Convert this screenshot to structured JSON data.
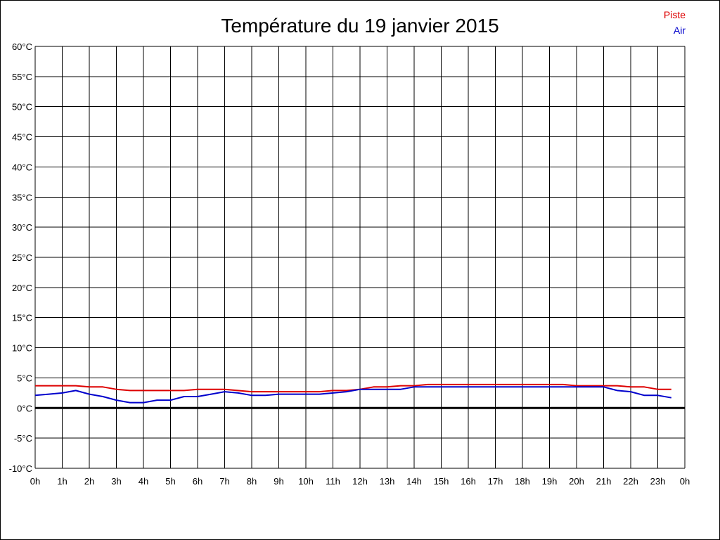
{
  "chart_data": {
    "type": "line",
    "title": "Température du 19 janvier 2015",
    "xlabel": "",
    "ylabel": "",
    "x_tick_labels": [
      "0h",
      "1h",
      "2h",
      "3h",
      "4h",
      "5h",
      "6h",
      "7h",
      "8h",
      "9h",
      "10h",
      "11h",
      "12h",
      "13h",
      "14h",
      "15h",
      "16h",
      "17h",
      "18h",
      "19h",
      "20h",
      "21h",
      "22h",
      "23h",
      "0h"
    ],
    "y_tick_labels": [
      "60°C",
      "55°C",
      "50°C",
      "45°C",
      "40°C",
      "35°C",
      "30°C",
      "25°C",
      "20°C",
      "15°C",
      "10°C",
      "5°C",
      "0°C",
      "-5°C",
      "-10°C"
    ],
    "xlim": [
      0,
      24
    ],
    "ylim": [
      -10,
      60
    ],
    "grid": true,
    "legend_position": "top-right",
    "series": [
      {
        "name": "Piste",
        "color": "#dd0000",
        "points": [
          [
            0,
            3.7
          ],
          [
            1,
            3.7
          ],
          [
            1.5,
            3.7
          ],
          [
            2,
            3.5
          ],
          [
            2.5,
            3.5
          ],
          [
            3,
            3.1
          ],
          [
            3.5,
            2.9
          ],
          [
            4,
            2.9
          ],
          [
            5,
            2.9
          ],
          [
            5.5,
            2.9
          ],
          [
            6,
            3.1
          ],
          [
            7,
            3.1
          ],
          [
            8,
            2.7
          ],
          [
            9,
            2.7
          ],
          [
            10,
            2.7
          ],
          [
            10.5,
            2.7
          ],
          [
            11,
            2.9
          ],
          [
            11.5,
            2.9
          ],
          [
            12,
            3.1
          ],
          [
            12.5,
            3.5
          ],
          [
            13,
            3.5
          ],
          [
            13.5,
            3.7
          ],
          [
            14,
            3.7
          ],
          [
            14.5,
            3.9
          ],
          [
            15,
            3.9
          ],
          [
            16,
            3.9
          ],
          [
            17,
            3.9
          ],
          [
            18,
            3.9
          ],
          [
            19,
            3.9
          ],
          [
            19.5,
            3.9
          ],
          [
            20,
            3.7
          ],
          [
            21,
            3.7
          ],
          [
            21.5,
            3.7
          ],
          [
            22,
            3.5
          ],
          [
            22.5,
            3.5
          ],
          [
            23,
            3.1
          ],
          [
            23.5,
            3.1
          ]
        ]
      },
      {
        "name": "Air",
        "color": "#0000cc",
        "points": [
          [
            0,
            2.1
          ],
          [
            0.5,
            2.3
          ],
          [
            1,
            2.5
          ],
          [
            1.5,
            2.9
          ],
          [
            2,
            2.3
          ],
          [
            2.5,
            1.9
          ],
          [
            3,
            1.3
          ],
          [
            3.5,
            0.9
          ],
          [
            4,
            0.9
          ],
          [
            4.5,
            1.3
          ],
          [
            5,
            1.3
          ],
          [
            5.5,
            1.9
          ],
          [
            6,
            1.9
          ],
          [
            6.5,
            2.3
          ],
          [
            7,
            2.7
          ],
          [
            7.5,
            2.5
          ],
          [
            8,
            2.1
          ],
          [
            8.5,
            2.1
          ],
          [
            9,
            2.3
          ],
          [
            10,
            2.3
          ],
          [
            10.5,
            2.3
          ],
          [
            11,
            2.5
          ],
          [
            11.5,
            2.7
          ],
          [
            12,
            3.1
          ],
          [
            12.5,
            3.1
          ],
          [
            13,
            3.1
          ],
          [
            13.5,
            3.1
          ],
          [
            14,
            3.5
          ],
          [
            15,
            3.5
          ],
          [
            16,
            3.5
          ],
          [
            17,
            3.5
          ],
          [
            18,
            3.5
          ],
          [
            19,
            3.5
          ],
          [
            20,
            3.5
          ],
          [
            21,
            3.5
          ],
          [
            21.5,
            2.9
          ],
          [
            22,
            2.7
          ],
          [
            22.5,
            2.1
          ],
          [
            23,
            2.1
          ],
          [
            23.5,
            1.7
          ]
        ]
      }
    ]
  }
}
